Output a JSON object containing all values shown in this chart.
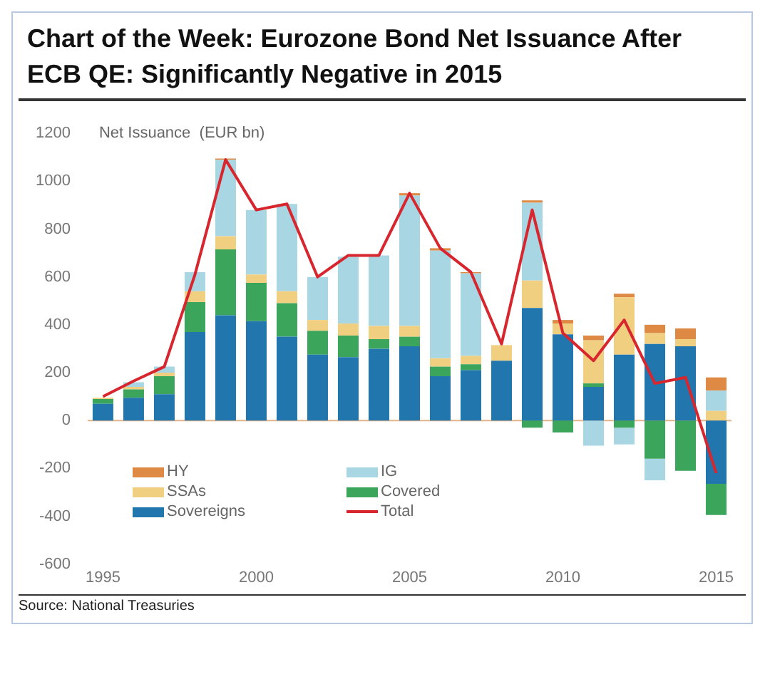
{
  "chart_data": {
    "type": "bar",
    "title": "Chart of the Week: Eurozone Bond Net Issuance After ECB QE: Significantly Negative in 2015",
    "ylabel": "Net Issuance  (EUR bn)",
    "annotations": [
      "Source: National Treasuries"
    ],
    "categories": [
      "1995",
      null,
      null,
      null,
      null,
      "2000",
      null,
      null,
      null,
      null,
      "2005",
      null,
      null,
      null,
      null,
      "2010",
      null,
      null,
      null,
      null,
      "2015"
    ],
    "stacked": true,
    "legend": "bottom left",
    "grid": false,
    "ref_lines": [
      {
        "axis": "y",
        "value": 0,
        "color": "#e2b48a"
      }
    ],
    "ylim": [
      -600,
      1200
    ],
    "yticks": [
      -600,
      -400,
      -200,
      0,
      200,
      400,
      600,
      800,
      1000,
      1200
    ],
    "series": [
      {
        "name": "Sovereigns",
        "color": "#2176ae",
        "values": [
          70,
          95,
          110,
          370,
          440,
          415,
          350,
          275,
          265,
          300,
          310,
          185,
          210,
          250,
          470,
          360,
          140,
          275,
          320,
          310,
          -265
        ]
      },
      {
        "name": "Covered",
        "color": "#3ba55c",
        "values": [
          20,
          35,
          75,
          125,
          275,
          160,
          140,
          100,
          90,
          40,
          40,
          40,
          25,
          0,
          -30,
          -50,
          15,
          -30,
          -160,
          -210,
          -130
        ]
      },
      {
        "name": "SSAs",
        "color": "#f1cf80",
        "values": [
          5,
          10,
          15,
          45,
          55,
          35,
          50,
          45,
          50,
          55,
          45,
          35,
          35,
          65,
          115,
          45,
          180,
          240,
          45,
          30,
          40
        ]
      },
      {
        "name": "IG",
        "color": "#a9d6e3",
        "values": [
          0,
          20,
          25,
          80,
          320,
          270,
          365,
          180,
          280,
          295,
          545,
          450,
          345,
          0,
          325,
          0,
          -105,
          -70,
          -90,
          0,
          85
        ]
      },
      {
        "name": "HY",
        "color": "#de8a45",
        "values": [
          0,
          0,
          0,
          0,
          5,
          0,
          0,
          0,
          0,
          0,
          10,
          10,
          5,
          0,
          10,
          15,
          20,
          15,
          35,
          45,
          55
        ]
      },
      {
        "name": "Total",
        "type": "line",
        "color": "#d7262e",
        "values": [
          100,
          165,
          225,
          610,
          1090,
          880,
          905,
          600,
          690,
          690,
          950,
          720,
          620,
          320,
          880,
          365,
          250,
          420,
          155,
          180,
          -220
        ]
      }
    ]
  }
}
